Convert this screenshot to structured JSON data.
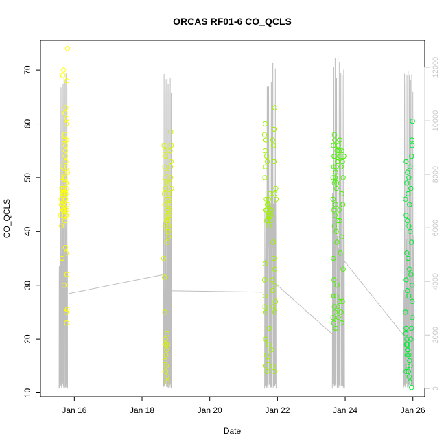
{
  "chart_data": {
    "type": "scatter",
    "title": "ORCAS RF01-6 CO_QCLS",
    "xlabel": "Date",
    "ylabel": "CO_QCLS",
    "x_axis": {
      "unit": "days in January",
      "range": [
        15.0,
        26.35
      ],
      "ticks": [
        {
          "value": 16,
          "label": "Jan 16"
        },
        {
          "value": 18,
          "label": "Jan 18"
        },
        {
          "value": 20,
          "label": "Jan 20"
        },
        {
          "value": 22,
          "label": "Jan 22"
        },
        {
          "value": 24,
          "label": "Jan 24"
        },
        {
          "value": 26,
          "label": "Jan 26"
        }
      ]
    },
    "y_axis": {
      "range": [
        9.3,
        75.5
      ],
      "ticks": [
        10,
        20,
        30,
        40,
        50,
        60,
        70
      ]
    },
    "y2_axis": {
      "range": [
        -300,
        13000
      ],
      "ticks": [
        0,
        2000,
        4000,
        6000,
        8000,
        10000,
        12000
      ],
      "color": "#c8c8c8"
    },
    "grid": false,
    "legend": "none",
    "colors": {
      "flight_points": [
        "#ffff00",
        "#d8f400",
        "#9ef200",
        "#4af200",
        "#00ec33",
        "#00ee44"
      ],
      "altitude_line": "#bebebe",
      "axis": "#000000"
    },
    "flights": [
      {
        "x_range": [
          15.58,
          15.83
        ],
        "color": "#ffff00",
        "points": [
          [
            15.62,
            45
          ],
          [
            15.65,
            47
          ],
          [
            15.68,
            44
          ],
          [
            15.7,
            49
          ],
          [
            15.72,
            50
          ],
          [
            15.74,
            46
          ],
          [
            15.76,
            43
          ],
          [
            15.78,
            52
          ],
          [
            15.6,
            43
          ],
          [
            15.63,
            48
          ],
          [
            15.66,
            45
          ],
          [
            15.69,
            51
          ],
          [
            15.71,
            47
          ],
          [
            15.73,
            44
          ],
          [
            15.75,
            53
          ],
          [
            15.77,
            48
          ],
          [
            15.61,
            46
          ],
          [
            15.64,
            50
          ],
          [
            15.67,
            47
          ],
          [
            15.7,
            43
          ],
          [
            15.72,
            42
          ],
          [
            15.74,
            55
          ],
          [
            15.76,
            49
          ],
          [
            15.79,
            45
          ],
          [
            15.62,
            41
          ],
          [
            15.65,
            52
          ],
          [
            15.68,
            48
          ],
          [
            15.71,
            46
          ],
          [
            15.73,
            50
          ],
          [
            15.75,
            47
          ],
          [
            15.77,
            44
          ],
          [
            15.8,
            51
          ],
          [
            15.7,
            57
          ],
          [
            15.72,
            58
          ],
          [
            15.74,
            56
          ],
          [
            15.76,
            60
          ],
          [
            15.78,
            61
          ],
          [
            15.75,
            63
          ],
          [
            15.73,
            62
          ],
          [
            15.77,
            57
          ],
          [
            15.66,
            69
          ],
          [
            15.68,
            70
          ],
          [
            15.8,
            74
          ],
          [
            15.78,
            68
          ],
          [
            15.64,
            35
          ],
          [
            15.74,
            37
          ],
          [
            15.76,
            36
          ],
          [
            15.7,
            30
          ],
          [
            15.78,
            32
          ],
          [
            15.76,
            25
          ],
          [
            15.79,
            25.5
          ],
          [
            15.77,
            23
          ],
          [
            15.66,
            44
          ],
          [
            15.74,
            54
          ]
        ]
      },
      {
        "x_range": [
          18.62,
          18.9
        ],
        "color": "#d8f400",
        "points": [
          [
            18.66,
            47
          ],
          [
            18.68,
            50
          ],
          [
            18.7,
            45
          ],
          [
            18.72,
            42
          ],
          [
            18.74,
            40
          ],
          [
            18.76,
            43
          ],
          [
            18.78,
            39
          ],
          [
            18.8,
            44
          ],
          [
            18.67,
            52
          ],
          [
            18.69,
            48
          ],
          [
            18.71,
            41
          ],
          [
            18.73,
            46
          ],
          [
            18.75,
            38
          ],
          [
            18.77,
            42
          ],
          [
            18.79,
            47
          ],
          [
            18.82,
            45
          ],
          [
            18.68,
            55
          ],
          [
            18.7,
            54
          ],
          [
            18.72,
            49
          ],
          [
            18.74,
            51
          ],
          [
            18.76,
            44
          ],
          [
            18.78,
            40
          ],
          [
            18.81,
            43
          ],
          [
            18.84,
            50
          ],
          [
            18.65,
            56
          ],
          [
            18.85,
            58.5
          ],
          [
            18.86,
            56
          ],
          [
            18.84,
            52
          ],
          [
            18.83,
            55
          ],
          [
            18.86,
            53
          ],
          [
            18.87,
            48
          ],
          [
            18.82,
            49
          ],
          [
            18.64,
            35
          ],
          [
            18.66,
            31.5
          ],
          [
            18.67,
            25
          ],
          [
            18.7,
            19
          ],
          [
            18.72,
            18
          ],
          [
            18.68,
            16
          ],
          [
            18.7,
            14
          ],
          [
            18.73,
            13
          ],
          [
            18.75,
            12
          ],
          [
            18.69,
            20
          ],
          [
            18.71,
            17
          ],
          [
            18.72,
            15
          ],
          [
            18.74,
            21
          ],
          [
            18.76,
            19
          ],
          [
            18.8,
            46
          ],
          [
            18.79,
            41
          ]
        ]
      },
      {
        "x_range": [
          21.6,
          21.98
        ],
        "color": "#9ef200",
        "points": [
          [
            21.66,
            44
          ],
          [
            21.68,
            42
          ],
          [
            21.7,
            45
          ],
          [
            21.72,
            43
          ],
          [
            21.74,
            46
          ],
          [
            21.76,
            41
          ],
          [
            21.78,
            44
          ],
          [
            21.8,
            43
          ],
          [
            21.67,
            46
          ],
          [
            21.69,
            44
          ],
          [
            21.71,
            42
          ],
          [
            21.73,
            45
          ],
          [
            21.75,
            43
          ],
          [
            21.77,
            47
          ],
          [
            21.79,
            42
          ],
          [
            21.82,
            44
          ],
          [
            21.63,
            50
          ],
          [
            21.65,
            52
          ],
          [
            21.64,
            55
          ],
          [
            21.66,
            57
          ],
          [
            21.62,
            58
          ],
          [
            21.64,
            60
          ],
          [
            21.68,
            54
          ],
          [
            21.7,
            53
          ],
          [
            21.86,
            57
          ],
          [
            21.9,
            59
          ],
          [
            21.92,
            63
          ],
          [
            21.88,
            56
          ],
          [
            21.9,
            53
          ],
          [
            21.92,
            47
          ],
          [
            21.95,
            48
          ],
          [
            21.96,
            46
          ],
          [
            21.88,
            38
          ],
          [
            21.9,
            35
          ],
          [
            21.92,
            33
          ],
          [
            21.9,
            30
          ],
          [
            21.94,
            27
          ],
          [
            21.88,
            26
          ],
          [
            21.85,
            31
          ],
          [
            21.86,
            29
          ],
          [
            21.64,
            34
          ],
          [
            21.62,
            31
          ],
          [
            21.64,
            28
          ],
          [
            21.66,
            25
          ],
          [
            21.65,
            20
          ],
          [
            21.68,
            17
          ],
          [
            21.66,
            15
          ],
          [
            21.7,
            14
          ],
          [
            21.72,
            16
          ],
          [
            21.74,
            19
          ],
          [
            21.76,
            22
          ],
          [
            21.82,
            18
          ],
          [
            21.86,
            15
          ],
          [
            21.9,
            14
          ],
          [
            21.92,
            25
          ],
          [
            21.63,
            26
          ]
        ]
      },
      {
        "x_range": [
          23.6,
          23.98
        ],
        "color": "#4af200",
        "points": [
          [
            23.64,
            50
          ],
          [
            23.66,
            52
          ],
          [
            23.68,
            49
          ],
          [
            23.7,
            54
          ],
          [
            23.72,
            51
          ],
          [
            23.74,
            48
          ],
          [
            23.76,
            55
          ],
          [
            23.78,
            53
          ],
          [
            23.65,
            56
          ],
          [
            23.67,
            54
          ],
          [
            23.69,
            57
          ],
          [
            23.71,
            50
          ],
          [
            23.73,
            52
          ],
          [
            23.75,
            49
          ],
          [
            23.77,
            53
          ],
          [
            23.8,
            56
          ],
          [
            23.64,
            46
          ],
          [
            23.66,
            44
          ],
          [
            23.68,
            41
          ],
          [
            23.7,
            43
          ],
          [
            23.72,
            45
          ],
          [
            23.74,
            40
          ],
          [
            23.76,
            38
          ],
          [
            23.78,
            42
          ],
          [
            23.82,
            55
          ],
          [
            23.84,
            57
          ],
          [
            23.86,
            54
          ],
          [
            23.88,
            52
          ],
          [
            23.9,
            55
          ],
          [
            23.92,
            53
          ],
          [
            23.94,
            50
          ],
          [
            23.96,
            54
          ],
          [
            23.65,
            35
          ],
          [
            23.67,
            31
          ],
          [
            23.66,
            28
          ],
          [
            23.68,
            26
          ],
          [
            23.64,
            24
          ],
          [
            23.66,
            23
          ],
          [
            23.7,
            25
          ],
          [
            23.72,
            22
          ],
          [
            23.74,
            28
          ],
          [
            23.76,
            30
          ],
          [
            23.78,
            26
          ],
          [
            23.8,
            24
          ],
          [
            23.84,
            27
          ],
          [
            23.88,
            25
          ],
          [
            23.9,
            23
          ],
          [
            23.92,
            27
          ],
          [
            23.86,
            36
          ],
          [
            23.9,
            39
          ],
          [
            23.94,
            33
          ],
          [
            23.82,
            44
          ],
          [
            23.84,
            42
          ],
          [
            23.9,
            47
          ],
          [
            23.93,
            45
          ],
          [
            23.68,
            58
          ]
        ]
      },
      {
        "x_range": [
          25.72,
          26.0
        ],
        "color": "#00ec33",
        "points": [
          [
            25.8,
            53
          ],
          [
            25.84,
            51
          ],
          [
            25.88,
            50
          ],
          [
            25.92,
            52
          ],
          [
            25.96,
            54
          ],
          [
            25.98,
            56
          ],
          [
            25.94,
            48
          ],
          [
            25.9,
            45
          ],
          [
            25.82,
            49
          ],
          [
            25.86,
            47
          ],
          [
            25.78,
            46
          ],
          [
            25.8,
            43
          ],
          [
            25.84,
            42
          ],
          [
            25.88,
            41
          ],
          [
            25.92,
            40
          ],
          [
            25.96,
            38
          ],
          [
            25.82,
            36
          ],
          [
            25.86,
            35
          ],
          [
            25.9,
            33
          ],
          [
            25.94,
            32
          ],
          [
            25.98,
            30
          ],
          [
            25.8,
            31
          ],
          [
            25.84,
            29
          ],
          [
            25.88,
            28
          ],
          [
            25.78,
            25
          ],
          [
            25.8,
            22
          ],
          [
            25.82,
            20
          ],
          [
            25.84,
            19
          ],
          [
            25.86,
            18
          ],
          [
            25.88,
            17
          ],
          [
            25.9,
            16
          ],
          [
            25.92,
            15
          ],
          [
            25.79,
            21
          ],
          [
            25.81,
            19
          ],
          [
            25.83,
            17
          ],
          [
            25.85,
            15
          ],
          [
            25.87,
            14
          ],
          [
            25.89,
            13
          ],
          [
            25.91,
            12
          ],
          [
            25.96,
            11
          ],
          [
            25.94,
            20
          ],
          [
            25.96,
            22
          ],
          [
            25.98,
            24
          ],
          [
            25.98,
            27
          ],
          [
            25.99,
            60.5
          ],
          [
            25.97,
            57
          ],
          [
            25.84,
            18
          ],
          [
            25.8,
            14
          ]
        ]
      }
    ],
    "altitude_series": {
      "axis": "y2",
      "flight_traces": [
        {
          "x_range": [
            15.55,
            15.8
          ],
          "peak": 12150,
          "low": 0,
          "level": 2400
        },
        {
          "x_range": [
            18.62,
            18.88
          ],
          "peak": 11900,
          "low": 0,
          "level": 2700
        },
        {
          "x_range": [
            21.62,
            21.96
          ],
          "peak": 12250,
          "low": 0,
          "level": 3900
        },
        {
          "x_range": [
            23.62,
            23.98
          ],
          "peak": 12450,
          "low": 0,
          "level": 3900
        },
        {
          "x_range": [
            25.72,
            26.02
          ],
          "peak": 11900,
          "low": 0,
          "level": 2100
        }
      ],
      "connectors": [
        [
          15.85,
          3550
        ],
        [
          18.6,
          4250
        ],
        [
          18.88,
          3650
        ],
        [
          21.6,
          3600
        ],
        [
          21.96,
          3900
        ],
        [
          23.65,
          2000
        ],
        [
          23.95,
          4800
        ],
        [
          25.72,
          2000
        ]
      ]
    }
  }
}
